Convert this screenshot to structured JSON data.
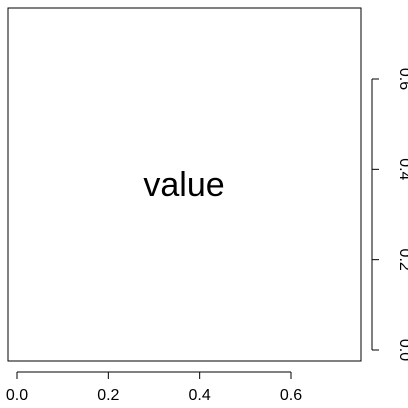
{
  "chart_data": {
    "type": "table",
    "title": "",
    "xlabel": "",
    "ylabel": "",
    "xlim": [
      0,
      0.75
    ],
    "ylim": [
      0,
      0.75
    ],
    "x_ticks": [
      "0.0",
      "0.2",
      "0.4",
      "0.6"
    ],
    "y_ticks": [
      "0.0",
      "0.2",
      "0.4",
      "0.6"
    ],
    "y_axis_side": "right",
    "grid": false,
    "annotation": "value"
  }
}
